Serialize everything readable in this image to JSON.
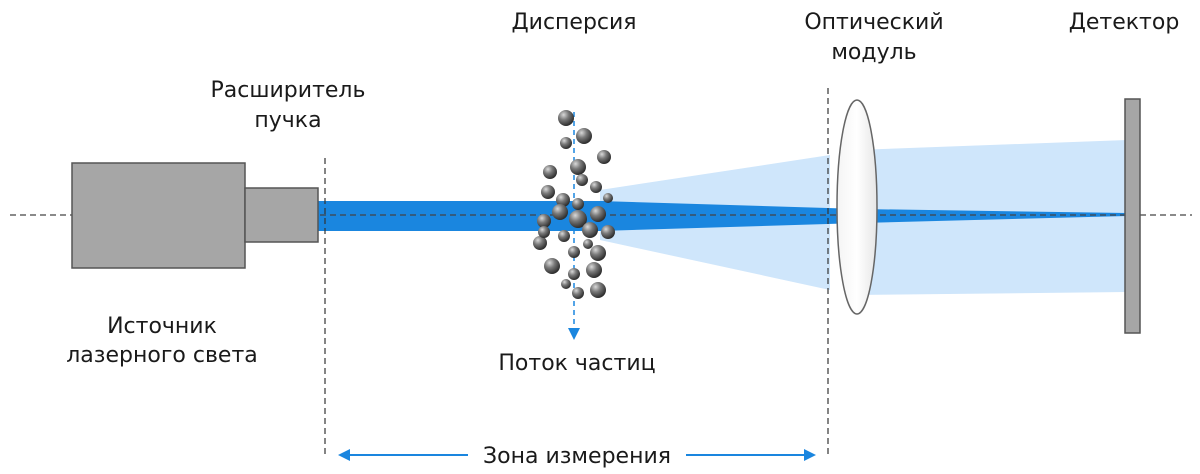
{
  "labels": {
    "laser_source_line1": "Источник",
    "laser_source_line2": "лазерного света",
    "beam_expander_line1": "Расширитель",
    "beam_expander_line2": "пучка",
    "dispersion": "Дисперсия",
    "particle_flow": "Поток частиц",
    "optical_module_line1": "Оптический",
    "optical_module_line2": "модуль",
    "detector": "Детектор",
    "measurement_zone": "Зона измерения"
  },
  "colors": {
    "beam": "#1a86df",
    "scatter": "#cfe6fb",
    "housing": "#a6a6a6",
    "housing_stroke": "#555555",
    "particle": "#5f5f5f",
    "axis": "#444444",
    "arrow": "#1a86df"
  }
}
